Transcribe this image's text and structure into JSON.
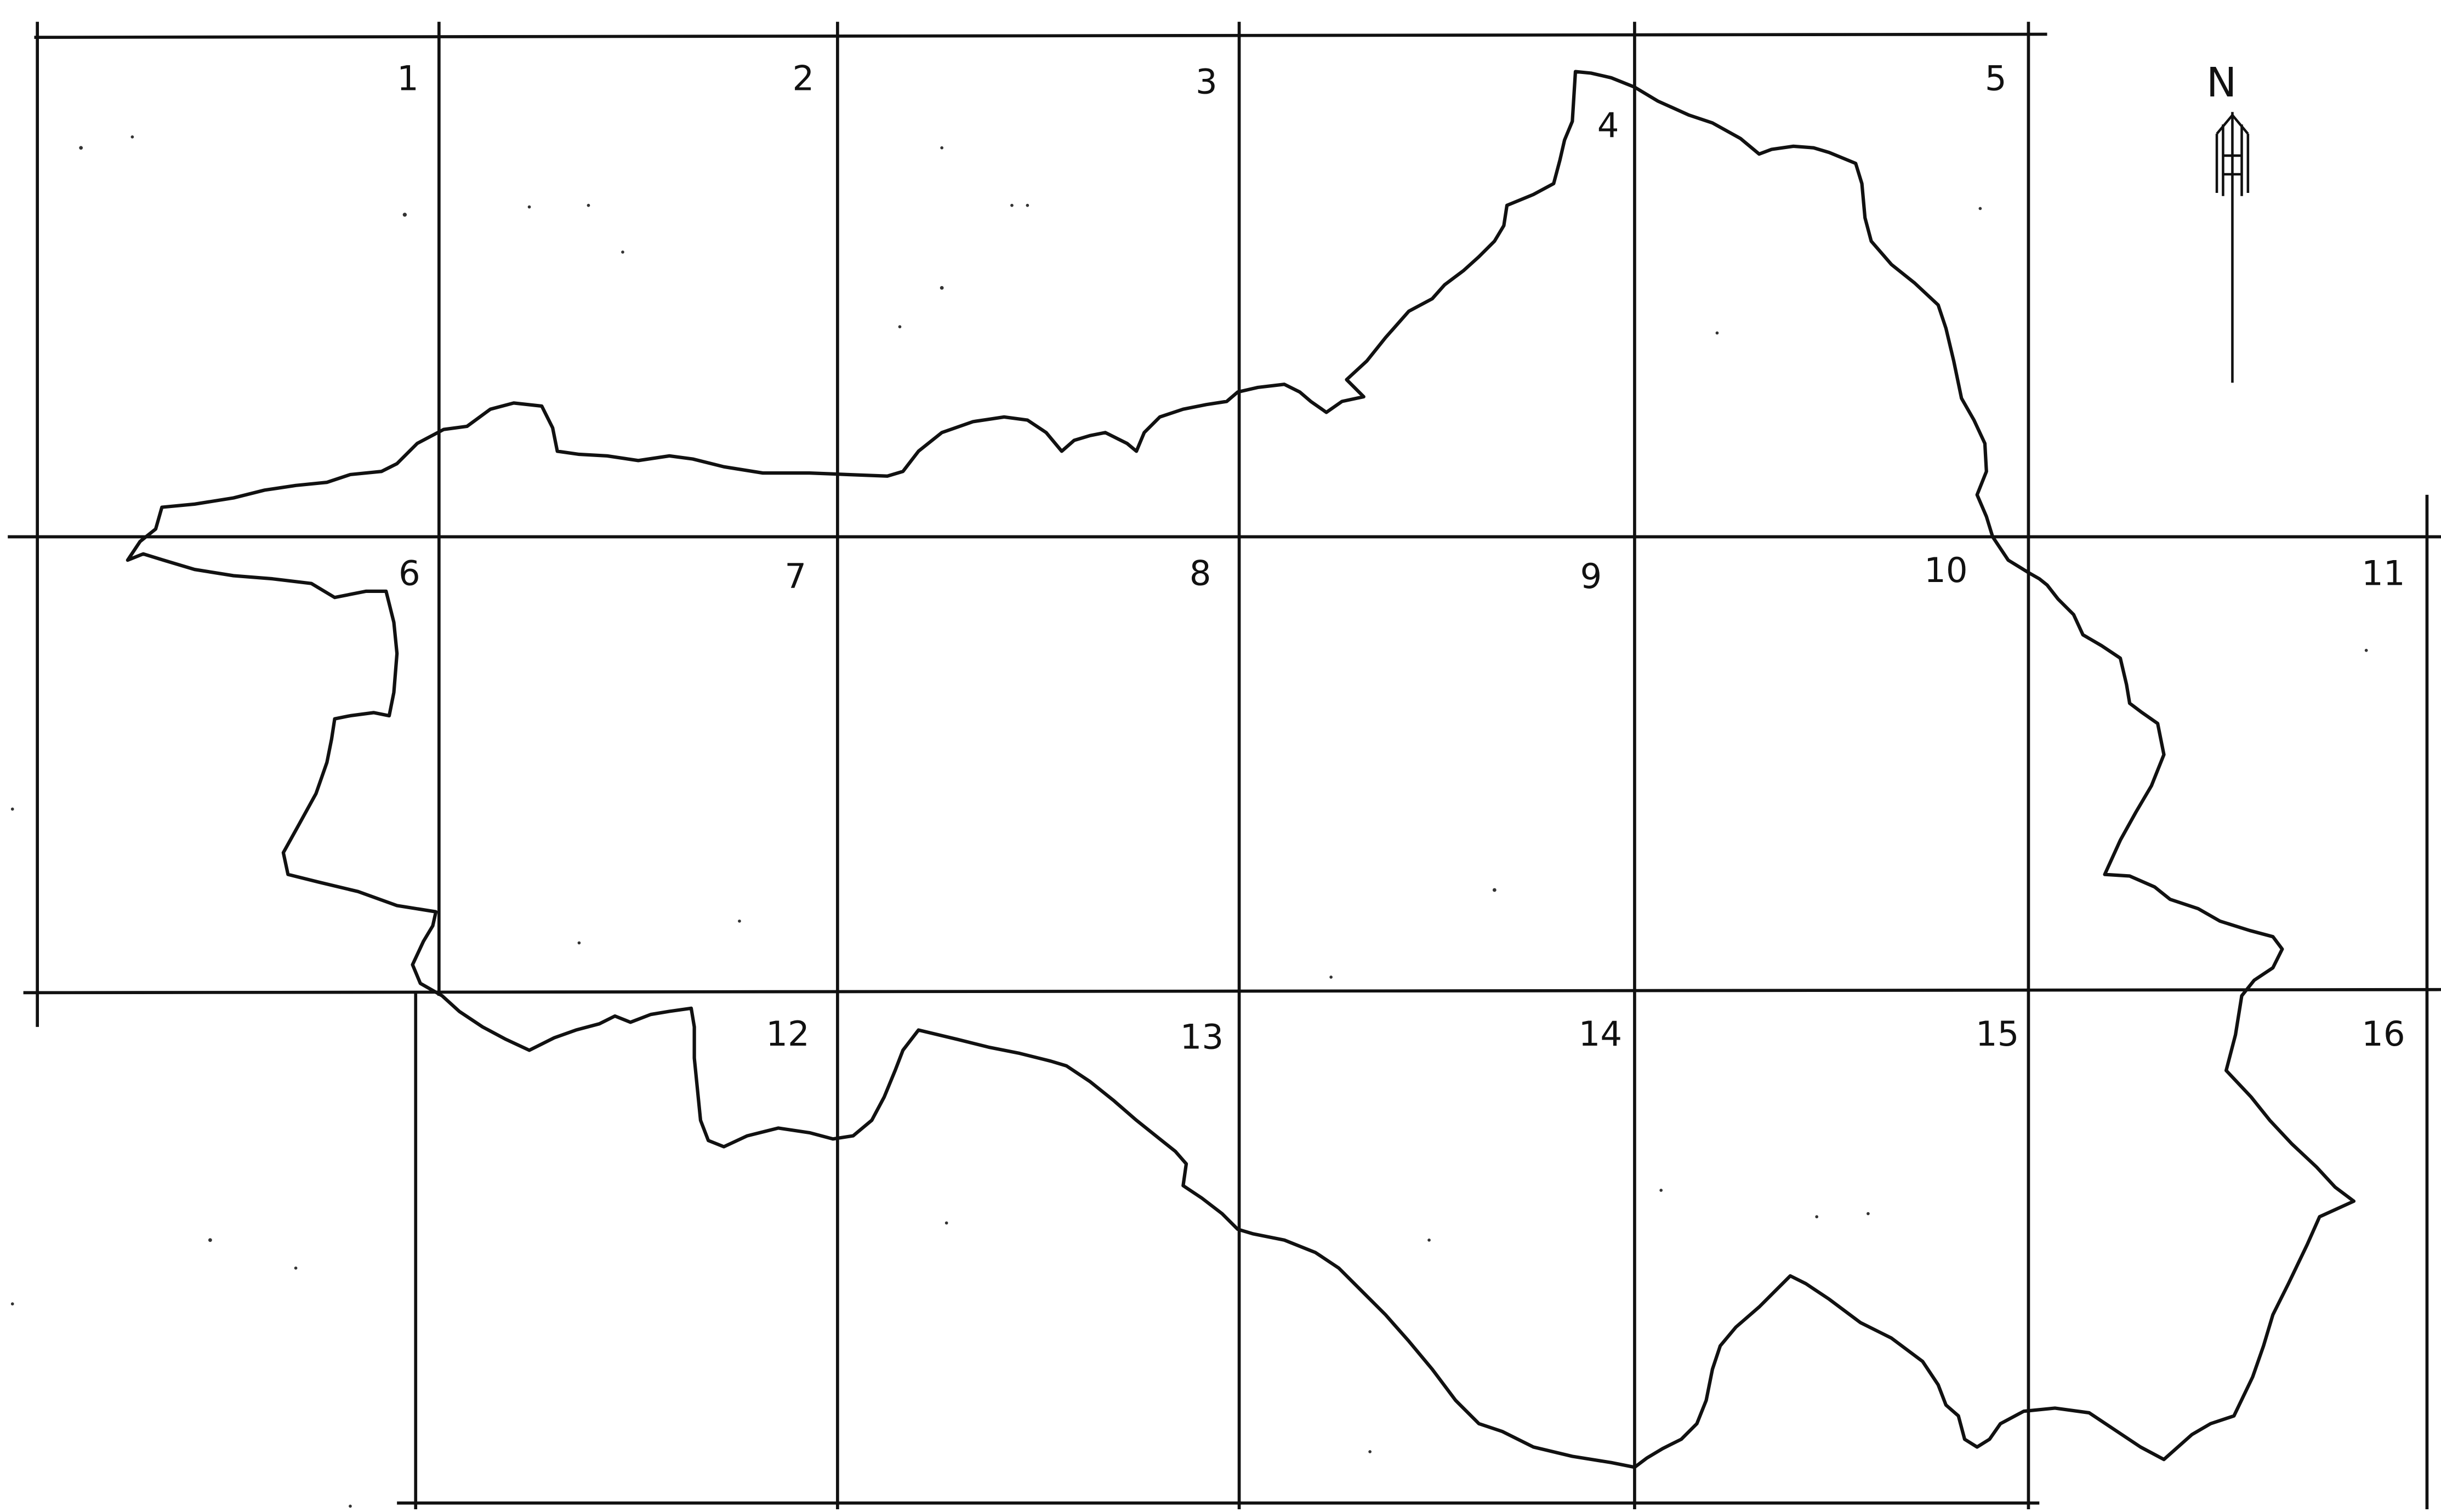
{
  "map": {
    "ink_color": "#111111",
    "background_color": "#ffffff",
    "north_label": "N",
    "north_arrow_icon": "north-arrow-icon",
    "sheets": [
      {
        "number": "1"
      },
      {
        "number": "2"
      },
      {
        "number": "3"
      },
      {
        "number": "4"
      },
      {
        "number": "5"
      },
      {
        "number": "6"
      },
      {
        "number": "7"
      },
      {
        "number": "8"
      },
      {
        "number": "9"
      },
      {
        "number": "10"
      },
      {
        "number": "11"
      },
      {
        "number": "12"
      },
      {
        "number": "13"
      },
      {
        "number": "14"
      },
      {
        "number": "15"
      },
      {
        "number": "16"
      }
    ]
  }
}
